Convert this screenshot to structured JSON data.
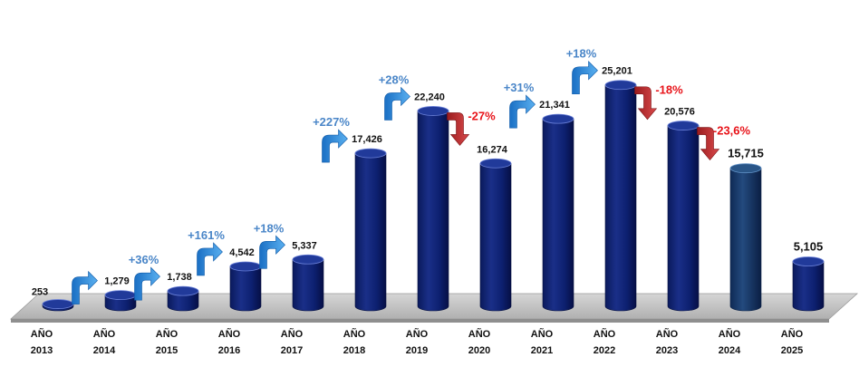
{
  "chart_data": {
    "type": "bar",
    "title": "",
    "xlabel": "",
    "ylabel": "",
    "ylim": [
      0,
      26000
    ],
    "grid": false,
    "legend": "none",
    "categories": [
      [
        "AÑO",
        "2013"
      ],
      [
        "AÑO",
        "2014"
      ],
      [
        "AÑO",
        "2015"
      ],
      [
        "AÑO",
        "2016"
      ],
      [
        "AÑO",
        "2017"
      ],
      [
        "AÑO",
        "2018"
      ],
      [
        "AÑO",
        "2019"
      ],
      [
        "AÑO",
        "2020"
      ],
      [
        "AÑO",
        "2021"
      ],
      [
        "AÑO",
        "2022"
      ],
      [
        "AÑO",
        "2023"
      ],
      [
        "AÑO",
        "2024"
      ],
      [
        "AÑO",
        "2025"
      ]
    ],
    "values": [
      253,
      1279,
      1738,
      4542,
      5337,
      17426,
      22240,
      16274,
      21341,
      25201,
      20576,
      15715,
      5105
    ],
    "value_labels": [
      "253",
      "1,279",
      "1,738",
      "4,542",
      "5,337",
      "17,426",
      "22,240",
      "16,274",
      "21,341",
      "25,201",
      "20,576",
      "15,715",
      "5,105"
    ],
    "changes": [
      {
        "between": [
          0,
          1
        ],
        "label": "",
        "direction": "up"
      },
      {
        "between": [
          1,
          2
        ],
        "label": "+36%",
        "direction": "up"
      },
      {
        "between": [
          2,
          3
        ],
        "label": "+161%",
        "direction": "up"
      },
      {
        "between": [
          3,
          4
        ],
        "label": "+18%",
        "direction": "up"
      },
      {
        "between": [
          4,
          5
        ],
        "label": "+227%",
        "direction": "up"
      },
      {
        "between": [
          5,
          6
        ],
        "label": "+28%",
        "direction": "up"
      },
      {
        "between": [
          6,
          7
        ],
        "label": "-27%",
        "direction": "down"
      },
      {
        "between": [
          7,
          8
        ],
        "label": "+31%",
        "direction": "up"
      },
      {
        "between": [
          8,
          9
        ],
        "label": "+18%",
        "direction": "up"
      },
      {
        "between": [
          9,
          10
        ],
        "label": "-18%",
        "direction": "down"
      },
      {
        "between": [
          10,
          11
        ],
        "label": "-23,6%",
        "direction": "down"
      }
    ],
    "colors": {
      "bar": "#0a1f6e",
      "bar_highlight": "#17386b",
      "up": "#2e86d6",
      "up_text": "#4a86c8",
      "down": "#c0282a",
      "down_text": "#e8141a",
      "floor": "#c8c8c8"
    }
  }
}
